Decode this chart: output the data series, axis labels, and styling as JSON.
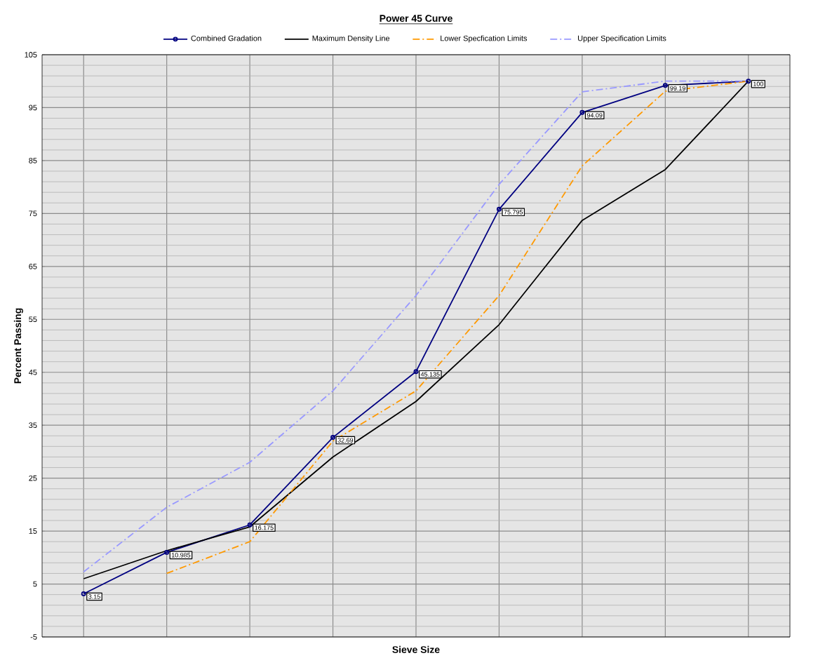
{
  "chart_data": {
    "type": "line",
    "title": "Power 45 Curve",
    "xlabel": "Sieve Size",
    "ylabel": "Percent Passing",
    "categories": [
      null,
      null,
      null,
      null,
      null,
      null,
      null,
      null,
      null
    ],
    "ylim": [
      -5,
      105
    ],
    "yticks": [
      -5,
      5,
      15,
      25,
      35,
      45,
      55,
      65,
      75,
      85,
      95,
      105
    ],
    "tick_labels": "y",
    "grid": true,
    "legend": "top",
    "series": [
      {
        "name": "Combined Gradation",
        "color": "#000080",
        "marker": "circle",
        "line_style": "solid",
        "values": [
          3.15,
          10.985,
          16.175,
          32.69,
          45.135,
          75.795,
          94.09,
          99.19,
          100
        ],
        "value_labels": [
          "3.15",
          "10.985",
          "16.175",
          "32.69",
          "45.135",
          "75.795",
          "94.09",
          "99.19",
          "100"
        ]
      },
      {
        "name": "Maximum Density Line",
        "color": "#000000",
        "marker": "none",
        "line_style": "solid",
        "values": [
          6,
          11.3,
          15.8,
          29,
          39.5,
          54,
          73.7,
          83.3,
          100
        ]
      },
      {
        "name": "Lower Specfication Limits",
        "color": "#ff9900",
        "marker": "none",
        "line_style": "dashed",
        "values": [
          null,
          7,
          13,
          32,
          41.5,
          59.5,
          84,
          98.1,
          100
        ]
      },
      {
        "name": "Upper Specification Limits",
        "color": "#9999ff",
        "marker": "none",
        "line_style": "dashed",
        "values": [
          7.3,
          19.5,
          28,
          41.5,
          59.5,
          80.5,
          98,
          100,
          100
        ]
      }
    ]
  }
}
